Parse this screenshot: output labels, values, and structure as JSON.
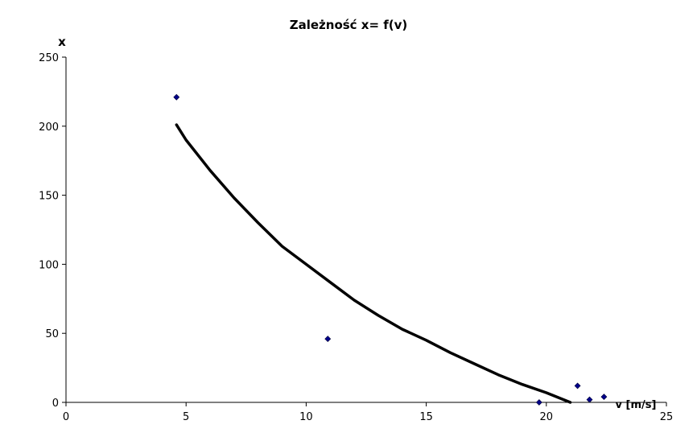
{
  "chart_data": {
    "type": "scatter",
    "title": "Zależność x= f(v)",
    "xlabel": "v [m/s]",
    "ylabel": "x",
    "xlim": [
      0,
      25
    ],
    "ylim": [
      0,
      250
    ],
    "x_ticks": [
      "0",
      "5",
      "10",
      "15",
      "20",
      "25"
    ],
    "y_ticks": [
      "0",
      "50",
      "100",
      "150",
      "200",
      "250"
    ],
    "grid": false,
    "legend": "none",
    "series": [
      {
        "type": "scatter",
        "color": "#00008B",
        "marker": "diamond",
        "points": [
          {
            "x": 4.6,
            "y": 221
          },
          {
            "x": 10.9,
            "y": 46
          },
          {
            "x": 19.7,
            "y": 0
          },
          {
            "x": 21.3,
            "y": 12
          },
          {
            "x": 21.8,
            "y": 2
          },
          {
            "x": 22.4,
            "y": 4
          }
        ]
      },
      {
        "type": "line",
        "color": "#000000",
        "points": [
          {
            "x": 4.6,
            "y": 201
          },
          {
            "x": 5.0,
            "y": 190
          },
          {
            "x": 6.0,
            "y": 168
          },
          {
            "x": 7.0,
            "y": 148
          },
          {
            "x": 8.0,
            "y": 130
          },
          {
            "x": 9.0,
            "y": 113
          },
          {
            "x": 10.0,
            "y": 100
          },
          {
            "x": 11.0,
            "y": 87
          },
          {
            "x": 12.0,
            "y": 74
          },
          {
            "x": 13.0,
            "y": 63
          },
          {
            "x": 14.0,
            "y": 53
          },
          {
            "x": 15.0,
            "y": 45
          },
          {
            "x": 16.0,
            "y": 36
          },
          {
            "x": 17.0,
            "y": 28
          },
          {
            "x": 18.0,
            "y": 20
          },
          {
            "x": 19.0,
            "y": 13
          },
          {
            "x": 20.0,
            "y": 7
          },
          {
            "x": 21.0,
            "y": 0
          }
        ]
      }
    ]
  }
}
